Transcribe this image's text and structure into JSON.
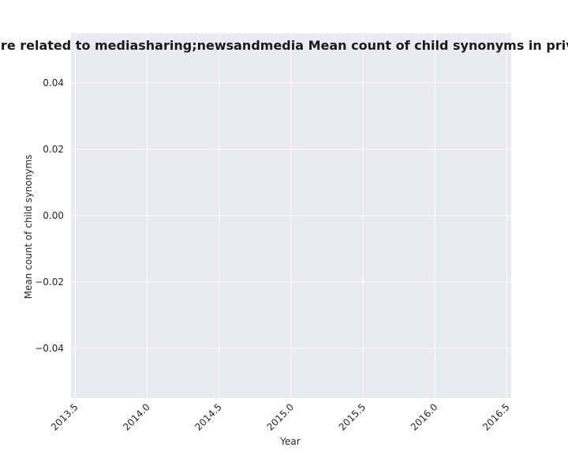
{
  "chart_data": {
    "type": "line",
    "title": "Categories are related to mediasharing;newsandmedia Mean count of child synonyms in privacy policies",
    "xlabel": "Year",
    "ylabel": "Mean count of child synonyms",
    "xlim": [
      2013.47,
      2016.53
    ],
    "ylim": [
      -0.055,
      0.055
    ],
    "xticks": [
      "2013.5",
      "2014.0",
      "2014.5",
      "2015.0",
      "2015.5",
      "2016.0",
      "2016.5"
    ],
    "yticks": [
      "0.04",
      "0.02",
      "0.00",
      "−0.02",
      "−0.04"
    ],
    "series": [],
    "grid": true,
    "legend": "none",
    "colors": {
      "plot_background": "#eaeaf2",
      "grid": "#ffffff"
    }
  }
}
